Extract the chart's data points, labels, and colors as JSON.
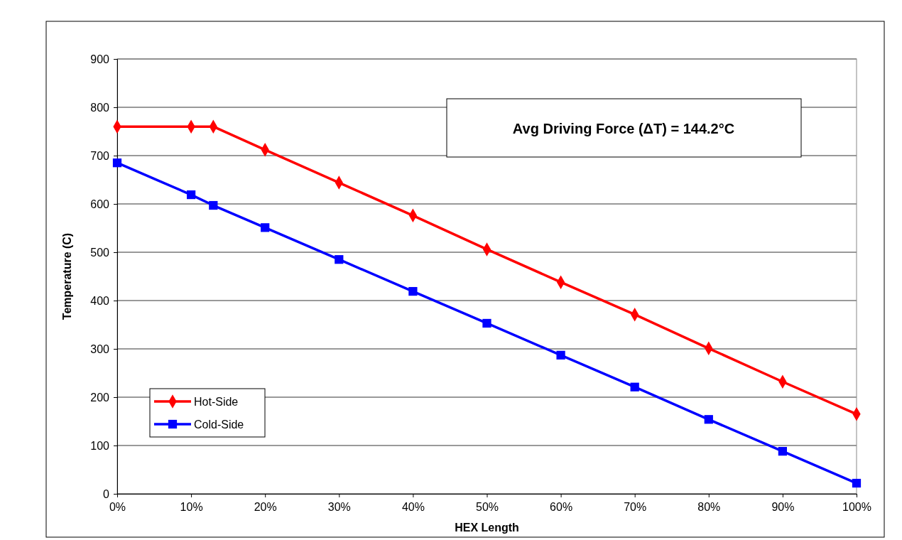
{
  "chart_data": {
    "type": "line",
    "xlabel": "HEX Length",
    "ylabel": "Temperature (C)",
    "annotations": [
      "Avg Driving Force (ΔT) = 144.2°C"
    ],
    "xlim": [
      0,
      100
    ],
    "xticks": [
      {
        "value": 0,
        "label": "0%"
      },
      {
        "value": 10,
        "label": "10%"
      },
      {
        "value": 20,
        "label": "20%"
      },
      {
        "value": 30,
        "label": "30%"
      },
      {
        "value": 40,
        "label": "40%"
      },
      {
        "value": 50,
        "label": "50%"
      },
      {
        "value": 60,
        "label": "60%"
      },
      {
        "value": 70,
        "label": "70%"
      },
      {
        "value": 80,
        "label": "80%"
      },
      {
        "value": 90,
        "label": "90%"
      },
      {
        "value": 100,
        "label": "100%"
      }
    ],
    "ylim": [
      0,
      900
    ],
    "yticks": [
      0,
      100,
      200,
      300,
      400,
      500,
      600,
      700,
      800,
      900
    ],
    "grid": "y",
    "legend": "bottom left",
    "line_style": "solid",
    "x": [
      0,
      10,
      13,
      20,
      30,
      40,
      50,
      60,
      70,
      80,
      90,
      100
    ],
    "series": [
      {
        "name": "Hot-Side",
        "color": "#ff0000",
        "marker": "diamond",
        "values": [
          760,
          760,
          760,
          712,
          644,
          576,
          506,
          438,
          371,
          301,
          232,
          165
        ]
      },
      {
        "name": "Cold-Side",
        "color": "#0000ff",
        "marker": "square",
        "values": [
          685,
          619,
          597,
          551,
          485,
          419,
          353,
          287,
          221,
          154,
          88,
          22
        ]
      }
    ]
  }
}
